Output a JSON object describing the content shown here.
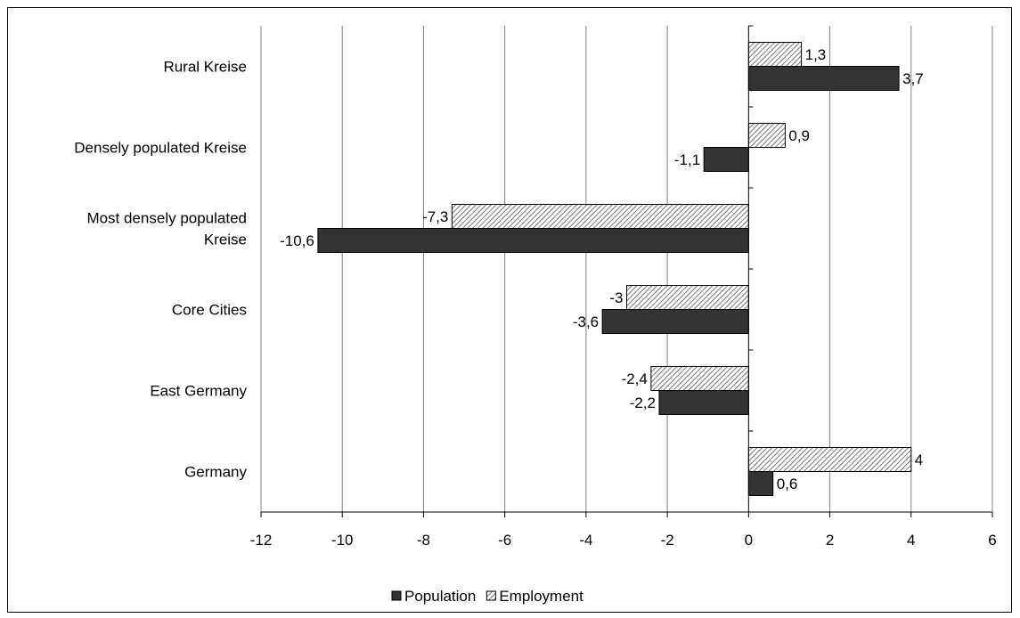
{
  "chart_data": {
    "type": "bar",
    "orientation": "horizontal",
    "categories": [
      "Rural Kreise",
      "Densely populated Kreise",
      "Most densely populated Kreise",
      "Core Cities",
      "East Germany",
      "Germany"
    ],
    "category_labels": [
      [
        "Rural Kreise"
      ],
      [
        "Densely populated Kreise"
      ],
      [
        "Most densely populated",
        "Kreise"
      ],
      [
        "Core Cities"
      ],
      [
        "East Germany"
      ],
      [
        "Germany"
      ]
    ],
    "series": [
      {
        "name": "Employment",
        "values": [
          1.3,
          0.9,
          -7.3,
          -3,
          -2.4,
          4
        ],
        "labels": [
          "1,3",
          "0,9",
          "-7,3",
          "-3",
          "-2,4",
          "4"
        ],
        "color": "#d9d9d9",
        "pattern": "hatch"
      },
      {
        "name": "Population",
        "values": [
          3.7,
          -1.1,
          -10.6,
          -3.6,
          -2.2,
          0.6
        ],
        "labels": [
          "3,7",
          "-1,1",
          "-10,6",
          "-3,6",
          "-2,2",
          "0,6"
        ],
        "color": "#333333",
        "pattern": "solid"
      }
    ],
    "legend_order": [
      "Population",
      "Employment"
    ],
    "xlim": [
      -12,
      6
    ],
    "xticks": [
      "-12",
      "-10",
      "-8",
      "-6",
      "-4",
      "-2",
      "0",
      "2",
      "4",
      "6"
    ],
    "grid": true,
    "legend_position": "bottom"
  }
}
